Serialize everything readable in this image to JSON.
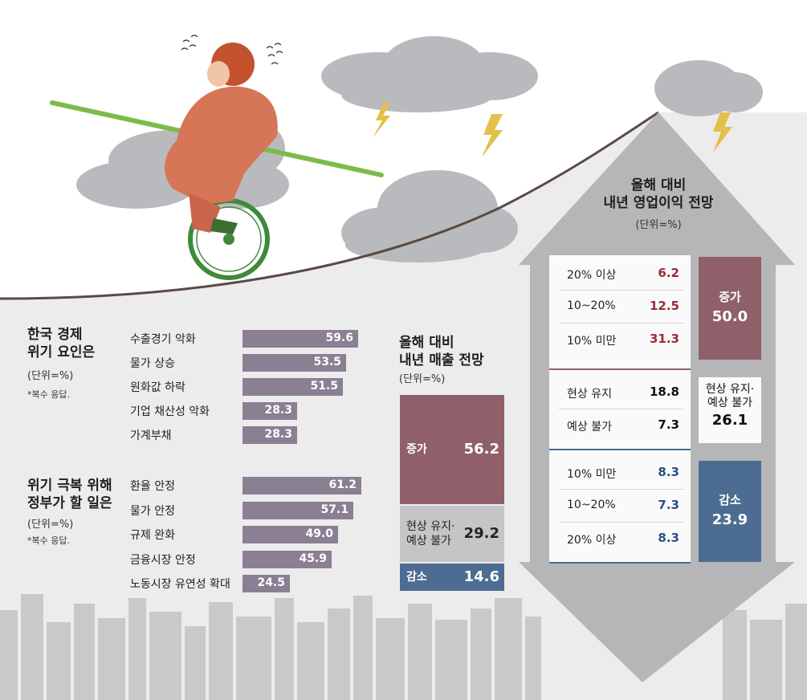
{
  "colors": {
    "bar": "#8b7f93",
    "increase": "#8f6069",
    "neutral": "#c5c5c7",
    "decrease": "#4c6c91",
    "red_text": "#9a2a35",
    "blue_text": "#2a4f85"
  },
  "chart_data": [
    {
      "type": "bar",
      "orientation": "horizontal",
      "title": "한국 경제 위기 요인은",
      "unit": "(단위=%)",
      "note": "*복수 응답.",
      "categories": [
        "수출경기 악화",
        "물가 상승",
        "원화값 하락",
        "기업 채산성 악화",
        "가계부채"
      ],
      "values": [
        59.6,
        53.5,
        51.5,
        28.3,
        28.3
      ]
    },
    {
      "type": "bar",
      "orientation": "horizontal",
      "title": "위기 극복 위해 정부가 할 일은",
      "unit": "(단위=%)",
      "note": "*복수 응답.",
      "categories": [
        "환율 안정",
        "물가 안정",
        "규제 완화",
        "금융시장 안정",
        "노동시장 유연성 확대"
      ],
      "values": [
        61.2,
        57.1,
        49.0,
        45.9,
        24.5
      ]
    },
    {
      "type": "bar",
      "orientation": "stacked",
      "title": "올해 대비 내년 매출 전망",
      "unit": "(단위=%)",
      "segments": [
        {
          "label": "증가",
          "value": 56.2
        },
        {
          "label": "현상 유지·\n예상 불가",
          "value": 29.2
        },
        {
          "label": "감소",
          "value": 14.6
        }
      ]
    },
    {
      "type": "table",
      "title": "올해 대비 내년 영업이익 전망",
      "unit": "(단위=%)",
      "groups": [
        {
          "label": "증가",
          "total": "50.0",
          "rows": [
            {
              "label": "20% 이상",
              "value": "6.2"
            },
            {
              "label": "10~20%",
              "value": "12.5"
            },
            {
              "label": "10% 미만",
              "value": "31.3"
            }
          ]
        },
        {
          "label": "현상 유지·\n예상 불가",
          "total": "26.1",
          "rows": [
            {
              "label": "현상 유지",
              "value": "18.8"
            },
            {
              "label": "예상 불가",
              "value": "7.3"
            }
          ]
        },
        {
          "label": "감소",
          "total": "23.9",
          "rows": [
            {
              "label": "10% 미만",
              "value": "8.3"
            },
            {
              "label": "10~20%",
              "value": "7.3"
            },
            {
              "label": "20% 이상",
              "value": "8.3"
            }
          ]
        }
      ]
    }
  ]
}
